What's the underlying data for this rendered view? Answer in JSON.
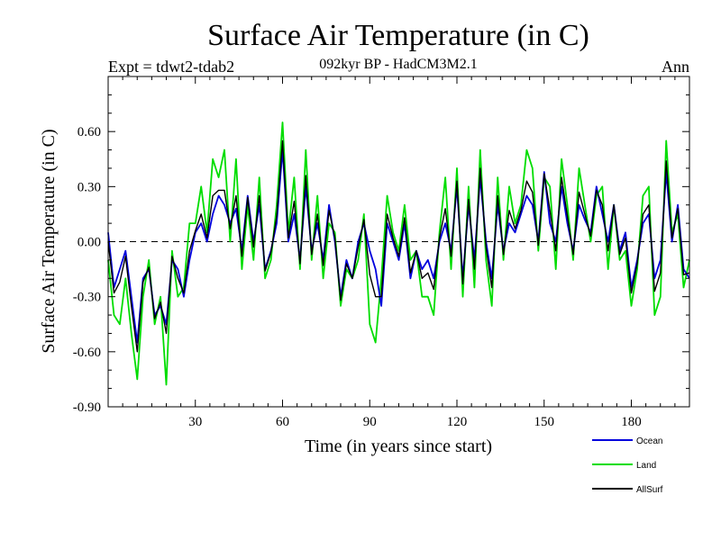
{
  "chart_data": {
    "type": "line",
    "title": "Surface Air Temperature (in C)",
    "subtitle": "092kyr BP - HadCM3M2.1",
    "left_label": "Expt = tdwt2-tdab2",
    "right_label": "Ann",
    "xlabel": "Time (in years since start)",
    "ylabel": "Surface Air Temperature (in C)",
    "xlim": [
      0,
      200
    ],
    "ylim": [
      -0.9,
      0.9
    ],
    "x_ticks": [
      30,
      60,
      90,
      120,
      150,
      180
    ],
    "x_tick_labels": [
      "30",
      "60",
      "90",
      "120",
      "150",
      "180"
    ],
    "y_ticks": [
      -0.9,
      -0.6,
      -0.3,
      0.0,
      0.3,
      0.6
    ],
    "y_tick_labels": [
      "-0.90",
      "-0.60",
      "-0.30",
      "0.00",
      "0.30",
      "0.60"
    ],
    "reference_line": 0.0,
    "x": [
      0,
      2,
      4,
      6,
      8,
      10,
      12,
      14,
      16,
      18,
      20,
      22,
      24,
      26,
      28,
      30,
      32,
      34,
      36,
      38,
      40,
      42,
      44,
      46,
      48,
      50,
      52,
      54,
      56,
      58,
      60,
      62,
      64,
      66,
      68,
      70,
      72,
      74,
      76,
      78,
      80,
      82,
      84,
      86,
      88,
      90,
      92,
      94,
      96,
      98,
      100,
      102,
      104,
      106,
      108,
      110,
      112,
      114,
      116,
      118,
      120,
      122,
      124,
      126,
      128,
      130,
      132,
      134,
      136,
      138,
      140,
      142,
      144,
      146,
      148,
      150,
      152,
      154,
      156,
      158,
      160,
      162,
      164,
      166,
      168,
      170,
      172,
      174,
      176,
      178,
      180,
      182,
      184,
      186,
      188,
      190,
      192,
      194,
      196,
      198,
      200
    ],
    "series": [
      {
        "name": "Ocean",
        "color": "#0000dd",
        "values": [
          0.05,
          -0.25,
          -0.15,
          -0.05,
          -0.3,
          -0.55,
          -0.2,
          -0.15,
          -0.4,
          -0.35,
          -0.45,
          -0.1,
          -0.15,
          -0.3,
          -0.1,
          0.05,
          0.1,
          0.0,
          0.15,
          0.25,
          0.2,
          0.1,
          0.18,
          -0.05,
          0.25,
          0.0,
          0.2,
          -0.15,
          -0.05,
          0.1,
          0.5,
          0.0,
          0.15,
          -0.1,
          0.3,
          -0.05,
          0.1,
          -0.1,
          0.2,
          0.0,
          -0.3,
          -0.1,
          -0.2,
          0.0,
          0.1,
          -0.05,
          -0.15,
          -0.35,
          0.1,
          0.0,
          -0.1,
          0.1,
          -0.2,
          -0.05,
          -0.15,
          -0.1,
          -0.2,
          0.0,
          0.1,
          -0.05,
          0.3,
          -0.2,
          0.2,
          -0.1,
          0.35,
          0.0,
          -0.2,
          0.2,
          -0.05,
          0.1,
          0.05,
          0.15,
          0.25,
          0.2,
          0.0,
          0.38,
          0.1,
          0.0,
          0.3,
          0.1,
          -0.05,
          0.2,
          0.12,
          0.05,
          0.3,
          0.15,
          0.0,
          0.2,
          -0.05,
          0.05,
          -0.25,
          -0.1,
          0.1,
          0.15,
          -0.2,
          -0.1,
          0.38,
          0.0,
          0.2,
          -0.15,
          -0.2
        ]
      },
      {
        "name": "Land",
        "color": "#00dd00",
        "values": [
          -0.1,
          -0.4,
          -0.45,
          -0.2,
          -0.5,
          -0.75,
          -0.3,
          -0.1,
          -0.45,
          -0.3,
          -0.78,
          -0.05,
          -0.3,
          -0.25,
          0.1,
          0.1,
          0.3,
          0.05,
          0.45,
          0.35,
          0.5,
          0.0,
          0.45,
          -0.15,
          0.2,
          -0.1,
          0.35,
          -0.2,
          -0.1,
          0.2,
          0.65,
          0.05,
          0.35,
          -0.15,
          0.5,
          -0.1,
          0.25,
          -0.2,
          0.1,
          0.05,
          -0.35,
          -0.15,
          -0.2,
          -0.1,
          0.15,
          -0.45,
          -0.55,
          -0.2,
          0.25,
          0.05,
          -0.05,
          0.2,
          -0.1,
          -0.05,
          -0.3,
          -0.3,
          -0.4,
          0.05,
          0.35,
          -0.15,
          0.4,
          -0.3,
          0.3,
          -0.25,
          0.5,
          -0.1,
          -0.35,
          0.35,
          -0.1,
          0.3,
          0.1,
          0.2,
          0.5,
          0.4,
          -0.05,
          0.35,
          0.3,
          -0.15,
          0.45,
          0.2,
          -0.1,
          0.4,
          0.2,
          0.0,
          0.25,
          0.3,
          -0.15,
          0.2,
          -0.1,
          -0.05,
          -0.35,
          -0.15,
          0.25,
          0.3,
          -0.4,
          -0.3,
          0.55,
          0.05,
          0.15,
          -0.25,
          -0.1
        ]
      },
      {
        "name": "AllSurf",
        "color": "#000000",
        "values": [
          0.0,
          -0.28,
          -0.22,
          -0.08,
          -0.35,
          -0.6,
          -0.22,
          -0.14,
          -0.42,
          -0.33,
          -0.5,
          -0.08,
          -0.2,
          -0.28,
          -0.05,
          0.06,
          0.15,
          0.02,
          0.25,
          0.28,
          0.28,
          0.07,
          0.25,
          -0.08,
          0.24,
          -0.03,
          0.25,
          -0.16,
          -0.06,
          0.14,
          0.55,
          0.02,
          0.22,
          -0.12,
          0.36,
          -0.07,
          0.15,
          -0.13,
          0.17,
          0.02,
          -0.32,
          -0.12,
          -0.2,
          -0.03,
          0.12,
          -0.18,
          -0.3,
          -0.3,
          0.15,
          0.02,
          -0.08,
          0.13,
          -0.17,
          -0.05,
          -0.2,
          -0.17,
          -0.26,
          0.02,
          0.18,
          -0.08,
          0.33,
          -0.23,
          0.23,
          -0.15,
          0.4,
          -0.03,
          -0.25,
          0.25,
          -0.07,
          0.17,
          0.07,
          0.17,
          0.33,
          0.27,
          -0.02,
          0.37,
          0.17,
          -0.05,
          0.35,
          0.14,
          -0.07,
          0.27,
          0.15,
          0.03,
          0.28,
          0.2,
          -0.05,
          0.2,
          -0.07,
          0.02,
          -0.28,
          -0.12,
          0.15,
          0.2,
          -0.27,
          -0.17,
          0.44,
          0.02,
          0.18,
          -0.18,
          -0.17
        ]
      }
    ]
  }
}
